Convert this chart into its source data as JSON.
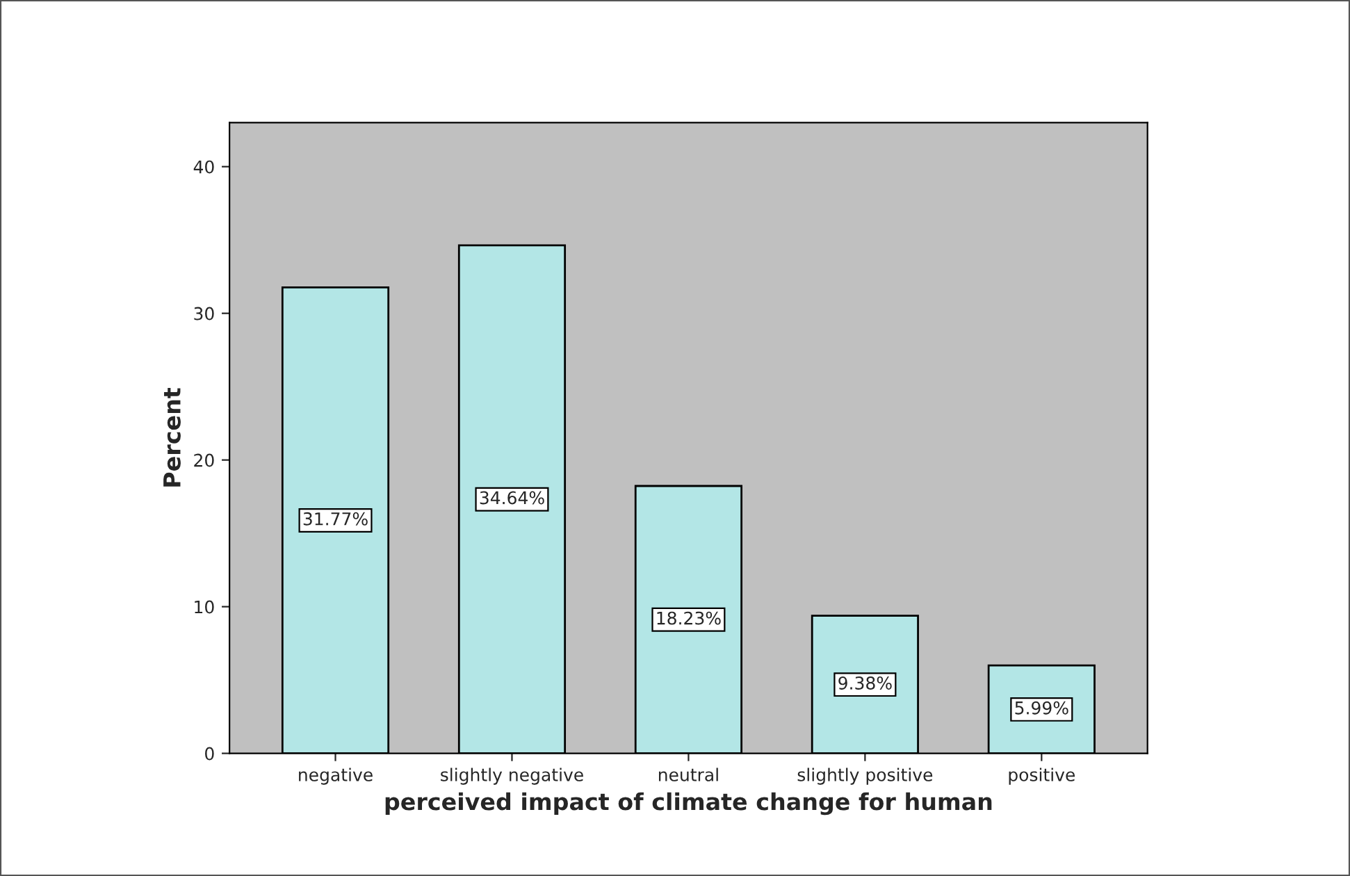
{
  "chart_data": {
    "type": "bar",
    "xlabel": "perceived impact of climate change for human",
    "ylabel": "Percent",
    "categories": [
      "negative",
      "slightly negative",
      "neutral",
      "slightly positive",
      "positive"
    ],
    "values": [
      31.77,
      34.64,
      18.23,
      9.38,
      5.99
    ],
    "value_labels": [
      "31.77%",
      "34.64%",
      "18.23%",
      "9.38%",
      "5.99%"
    ],
    "color": "#b3e6e6",
    "ylim": [
      0,
      43
    ],
    "yticks": [
      0,
      10,
      20,
      30,
      40
    ],
    "grid": false,
    "legend": false
  }
}
